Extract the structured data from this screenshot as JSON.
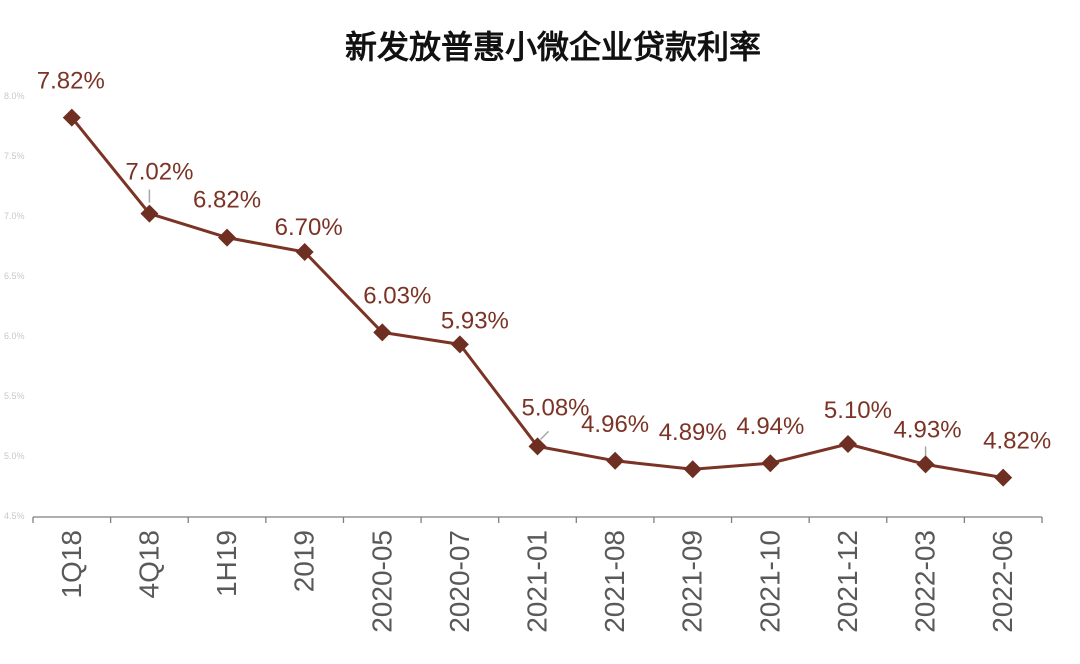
{
  "chart_data": {
    "type": "line",
    "title": "新发放普惠小微企业贷款利率",
    "categories": [
      "1Q18",
      "4Q18",
      "1H19",
      "2019",
      "2020-05",
      "2020-07",
      "2021-01",
      "2021-08",
      "2021-09",
      "2021-10",
      "2021-12",
      "2022-03",
      "2022-06"
    ],
    "values": [
      7.82,
      7.02,
      6.82,
      6.7,
      6.03,
      5.93,
      5.08,
      4.96,
      4.89,
      4.94,
      5.1,
      4.93,
      4.82
    ],
    "data_labels": [
      "7.82%",
      "7.02%",
      "6.82%",
      "6.70%",
      "6.03%",
      "5.93%",
      "5.08%",
      "4.96%",
      "4.89%",
      "4.94%",
      "5.10%",
      "4.93%",
      "4.82%"
    ],
    "yticks": [
      "4.5%",
      "5.0%",
      "5.5%",
      "6.0%",
      "6.5%",
      "7.0%",
      "7.5%",
      "8.0%"
    ],
    "ylim": [
      4.5,
      8.0
    ],
    "grid": false,
    "legend": "none",
    "colors": {
      "line": "#7b3325",
      "marker": "#6e2f22",
      "label": "#7b3325",
      "axis": "#7f7f7f",
      "leader": "#a6a6a6"
    }
  }
}
